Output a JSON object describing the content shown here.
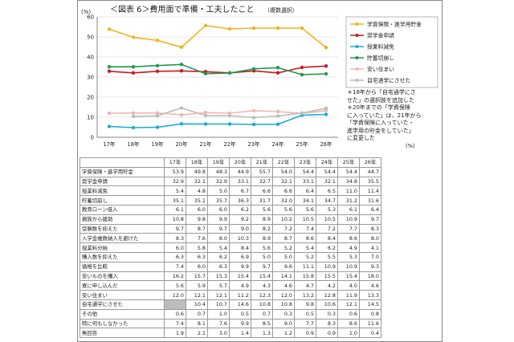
{
  "chart_data": {
    "type": "line",
    "title": "＜図表 6＞費用面で準備・工夫したこと",
    "subtitle": "（複数選択）",
    "ylabel": "(%)",
    "xunit": "(%)",
    "ylim": [
      0,
      60
    ],
    "yticks": [
      0,
      10,
      20,
      30,
      40,
      50,
      60
    ],
    "categories": [
      "17年",
      "18年",
      "19年",
      "20年",
      "21年",
      "22年",
      "23年",
      "24年",
      "25年",
      "26年"
    ],
    "series": [
      {
        "name": "学資保険・進学用貯金",
        "color": "#f5b21d",
        "values": [
          53.9,
          49.8,
          48.3,
          44.9,
          55.7,
          54.0,
          54.4,
          54.4,
          54.4,
          44.7
        ]
      },
      {
        "name": "奨学金申請",
        "color": "#c8191e",
        "values": [
          32.9,
          32.1,
          32.9,
          33.1,
          32.7,
          32.1,
          33.1,
          32.1,
          34.8,
          35.5
        ]
      },
      {
        "name": "授業料減免",
        "color": "#1aaad7",
        "values": [
          5.4,
          4.8,
          5.0,
          6.7,
          6.6,
          6.6,
          6.4,
          6.5,
          11.0,
          11.4
        ]
      },
      {
        "name": "貯蓄切崩し",
        "color": "#1e9a4c",
        "values": [
          35.1,
          35.1,
          35.7,
          36.3,
          31.7,
          32.0,
          34.1,
          34.7,
          31.2,
          31.6
        ]
      },
      {
        "name": "安い住まい",
        "color": "#f2b4ad",
        "values": [
          12.0,
          12.1,
          12.1,
          11.2,
          12.3,
          12.0,
          13.2,
          12.8,
          11.9,
          13.3
        ]
      },
      {
        "name": "自宅通学にさせた",
        "color": "#bcbcbc",
        "values": [
          null,
          10.4,
          10.7,
          14.6,
          10.8,
          10.8,
          9.8,
          10.6,
          12.1,
          14.5
        ]
      }
    ]
  },
  "notes": [
    "＊18年から「自宅通学にさ",
    "せた」の選択肢を追加した",
    "＊20年までの「学資保険",
    "に入っていた」は、21年から",
    "「学資保険に入っていた・",
    "進学用の貯金をしていた」",
    "に変更した"
  ],
  "table": {
    "years": [
      "17年",
      "18年",
      "19年",
      "20年",
      "21年",
      "22年",
      "23年",
      "24年",
      "25年",
      "26年"
    ],
    "rows": [
      {
        "label": "学資保険・進学用貯金",
        "values": [
          "53.9",
          "49.8",
          "48.3",
          "44.9",
          "55.7",
          "54.0",
          "54.4",
          "54.4",
          "54.4",
          "44.7"
        ]
      },
      {
        "label": "奨学金申請",
        "values": [
          "32.9",
          "32.1",
          "32.9",
          "33.1",
          "32.7",
          "32.1",
          "33.1",
          "32.1",
          "34.8",
          "35.5"
        ]
      },
      {
        "label": "授業料減免",
        "values": [
          "5.4",
          "4.8",
          "5.0",
          "6.7",
          "6.6",
          "6.6",
          "6.4",
          "6.5",
          "11.0",
          "11.4"
        ]
      },
      {
        "label": "貯蓄切崩し",
        "values": [
          "35.1",
          "35.1",
          "35.7",
          "36.3",
          "31.7",
          "32.0",
          "34.1",
          "34.7",
          "31.2",
          "31.6"
        ]
      },
      {
        "label": "教育ローン借入",
        "values": [
          "6.1",
          "6.0",
          "6.0",
          "6.2",
          "5.6",
          "5.6",
          "5.6",
          "5.3",
          "6.1",
          "6.4"
        ]
      },
      {
        "label": "親族から援助",
        "values": [
          "10.8",
          "9.8",
          "9.9",
          "9.2",
          "8.9",
          "10.2",
          "10.5",
          "10.5",
          "10.9",
          "9.7"
        ]
      },
      {
        "label": "受験数を抑えた",
        "values": [
          "9.7",
          "8.7",
          "9.7",
          "9.0",
          "8.2",
          "7.2",
          "7.4",
          "7.2",
          "7.7",
          "8.3"
        ]
      },
      {
        "label": "入学金複数納入を避けた",
        "values": [
          "8.3",
          "7.6",
          "8.0",
          "10.3",
          "8.9",
          "8.7",
          "8.6",
          "8.4",
          "8.6",
          "8.0"
        ]
      },
      {
        "label": "授業料分納",
        "values": [
          "6.0",
          "5.8",
          "5.4",
          "8.4",
          "5.6",
          "5.2",
          "5.4",
          "6.2",
          "4.9",
          "4.1"
        ]
      },
      {
        "label": "購入数を抑えた",
        "values": [
          "6.3",
          "6.3",
          "6.2",
          "6.9",
          "5.0",
          "5.0",
          "5.2",
          "5.5",
          "5.3",
          "7.0"
        ]
      },
      {
        "label": "価格を比較",
        "values": [
          "7.4",
          "6.0",
          "6.3",
          "9.9",
          "9.7",
          "9.6",
          "11.1",
          "10.9",
          "10.9",
          "9.3"
        ]
      },
      {
        "label": "安いものを購入",
        "values": [
          "16.2",
          "15.7",
          "15.3",
          "15.4",
          "15.4",
          "14.1",
          "15.8",
          "15.5",
          "15.4",
          "18.0"
        ]
      },
      {
        "label": "寮に申し込んだ",
        "values": [
          "5.6",
          "5.9",
          "5.7",
          "4.9",
          "4.3",
          "4.6",
          "4.7",
          "4.2",
          "4.0",
          "4.6"
        ]
      },
      {
        "label": "安い住まい",
        "values": [
          "12.0",
          "12.1",
          "12.1",
          "11.2",
          "12.3",
          "12.0",
          "13.2",
          "12.8",
          "11.9",
          "13.3"
        ]
      },
      {
        "label": "自宅通学にさせた",
        "values": [
          "",
          "10.4",
          "10.7",
          "14.6",
          "10.8",
          "10.8",
          "9.8",
          "10.6",
          "12.1",
          "14.5"
        ]
      },
      {
        "label": "その他",
        "values": [
          "0.6",
          "0.7",
          "1.0",
          "0.5",
          "0.7",
          "0.3",
          "0.5",
          "0.3",
          "0.6",
          "0.8"
        ]
      },
      {
        "label": "特に何もしなかった",
        "values": [
          "7.4",
          "8.1",
          "7.6",
          "9.9",
          "8.5",
          "9.0",
          "7.7",
          "8.3",
          "8.6",
          "11.6"
        ]
      },
      {
        "label": "無回答",
        "values": [
          "1.9",
          "2.1",
          "3.0",
          "1.4",
          "1.3",
          "1.2",
          "0.9",
          "0.9",
          "1.0",
          "0.4"
        ]
      }
    ]
  }
}
